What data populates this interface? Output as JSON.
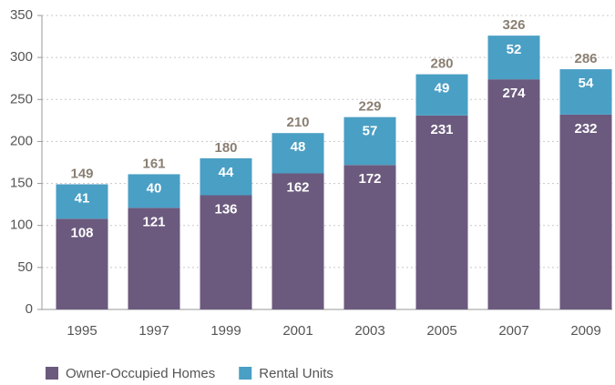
{
  "chart_data": {
    "type": "stacked_bar",
    "categories": [
      "1995",
      "1997",
      "1999",
      "2001",
      "2003",
      "2005",
      "2007",
      "2009"
    ],
    "series": [
      {
        "name": "Owner-Occupied Homes",
        "color": "#6b5a7e",
        "values": [
          108,
          121,
          136,
          162,
          172,
          231,
          274,
          232
        ]
      },
      {
        "name": "Rental Units",
        "color": "#4a9fc4",
        "values": [
          41,
          40,
          44,
          48,
          57,
          49,
          52,
          54
        ]
      }
    ],
    "totals": [
      149,
      161,
      180,
      210,
      229,
      280,
      326,
      286
    ],
    "ylim": [
      0,
      350
    ],
    "yticks": [
      0,
      50,
      100,
      150,
      200,
      250,
      300,
      350
    ],
    "grid": true
  }
}
